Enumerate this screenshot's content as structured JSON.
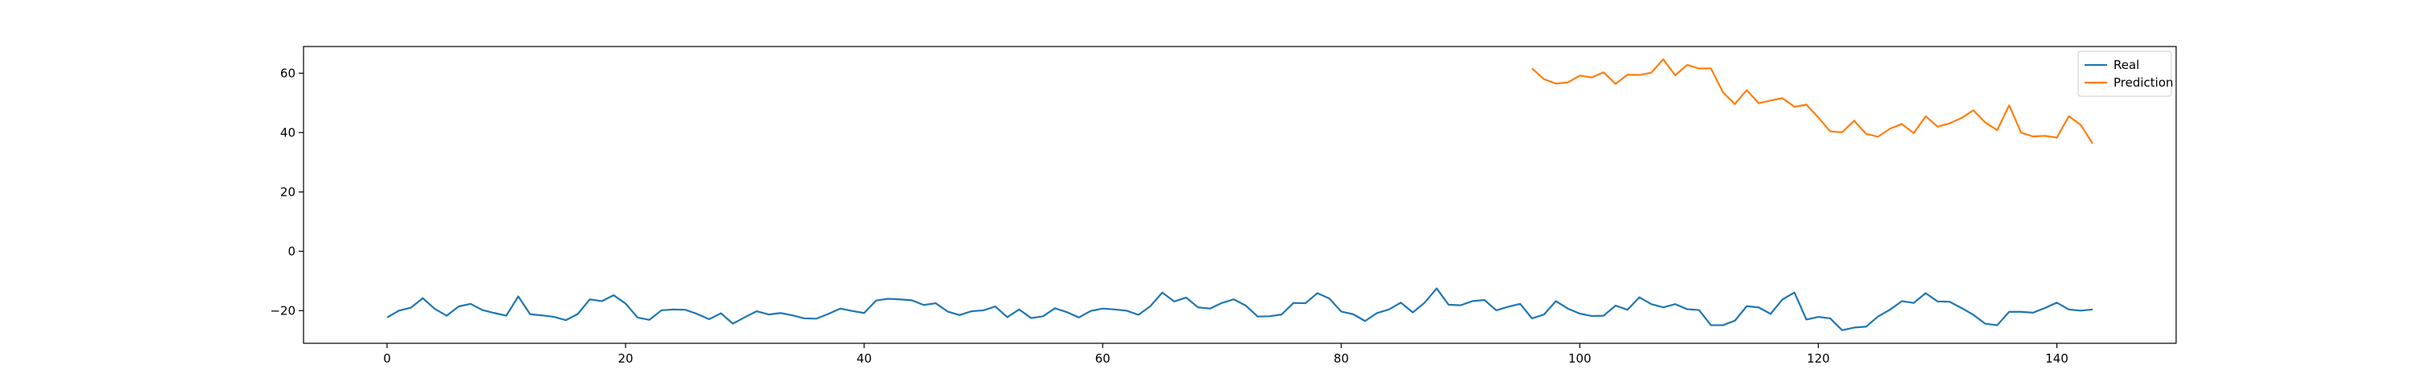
{
  "chart_data": {
    "type": "line",
    "title": "",
    "xlabel": "",
    "ylabel": "",
    "xlim": [
      -7,
      150
    ],
    "ylim": [
      -31,
      69
    ],
    "xticks": [
      0,
      20,
      40,
      60,
      80,
      100,
      120,
      140
    ],
    "yticks": [
      -20,
      0,
      20,
      40,
      60
    ],
    "grid": false,
    "legend_position": "top-right",
    "series": [
      {
        "name": "Real",
        "color": "#1f77b4",
        "x_start": 0,
        "values": [
          -22.3,
          -20.0,
          -19.0,
          -15.8,
          -19.4,
          -21.7,
          -18.6,
          -17.7,
          -19.8,
          -20.8,
          -21.7,
          -15.2,
          -21.2,
          -21.6,
          -22.1,
          -23.2,
          -21.1,
          -16.2,
          -16.8,
          -14.8,
          -17.6,
          -22.3,
          -23.1,
          -19.9,
          -19.6,
          -19.7,
          -21.1,
          -22.9,
          -20.9,
          -24.4,
          -22.2,
          -20.2,
          -21.3,
          -20.8,
          -21.6,
          -22.6,
          -22.7,
          -21.1,
          -19.3,
          -20.1,
          -20.8,
          -16.6,
          -16.0,
          -16.2,
          -16.5,
          -18.1,
          -17.5,
          -20.3,
          -21.5,
          -20.2,
          -19.9,
          -18.6,
          -22.2,
          -19.6,
          -22.5,
          -21.9,
          -19.2,
          -20.5,
          -22.3,
          -20.1,
          -19.3,
          -19.6,
          -20.0,
          -21.4,
          -18.5,
          -13.9,
          -16.9,
          -15.6,
          -18.9,
          -19.3,
          -17.4,
          -16.2,
          -18.3,
          -22.0,
          -21.9,
          -21.3,
          -17.4,
          -17.5,
          -14.1,
          -15.9,
          -20.3,
          -21.2,
          -23.5,
          -20.8,
          -19.6,
          -17.3,
          -20.6,
          -17.3,
          -12.5,
          -18.0,
          -18.2,
          -16.8,
          -16.4,
          -19.9,
          -18.7,
          -17.7,
          -22.6,
          -21.3,
          -16.8,
          -19.3,
          -21.0,
          -21.8,
          -21.7,
          -18.3,
          -19.7,
          -15.5,
          -17.8,
          -18.9,
          -17.8,
          -19.5,
          -19.8,
          -24.9,
          -24.9,
          -23.4,
          -18.5,
          -18.9,
          -21.1,
          -16.2,
          -13.9,
          -23.0,
          -22.1,
          -22.6,
          -26.6,
          -25.7,
          -25.4,
          -22.0,
          -19.7,
          -16.8,
          -17.4,
          -14.1,
          -16.9,
          -17.0,
          -19.1,
          -21.4,
          -24.4,
          -24.9,
          -20.4,
          -20.4,
          -20.7,
          -19.1,
          -17.3,
          -19.6,
          -20.0,
          -19.6
        ]
      },
      {
        "name": "Prediction",
        "color": "#ff7f0e",
        "x_start": 96,
        "values": [
          61.6,
          58.0,
          56.5,
          56.9,
          59.2,
          58.6,
          60.3,
          56.4,
          59.5,
          59.4,
          60.2,
          64.7,
          59.3,
          62.8,
          61.6,
          61.6,
          53.6,
          49.6,
          54.3,
          49.9,
          50.8,
          51.6,
          48.7,
          49.4,
          45.1,
          40.4,
          40.1,
          44.0,
          39.6,
          38.6,
          41.3,
          42.9,
          39.8,
          45.5,
          42.0,
          43.1,
          44.9,
          47.5,
          43.4,
          40.8,
          49.2,
          40.0,
          38.7,
          38.9,
          38.3,
          45.5,
          42.6,
          36.3
        ]
      }
    ]
  }
}
